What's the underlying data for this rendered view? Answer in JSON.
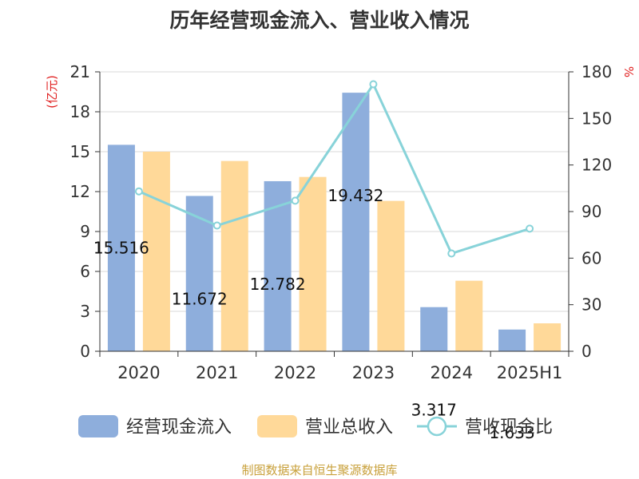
{
  "title": "历年经营现金流入、营业收入情况",
  "source": "制图数据来自恒生聚源数据库",
  "chart_data": {
    "type": "bar",
    "title": "历年经营现金流入、营业收入情况",
    "categories": [
      "2020",
      "2021",
      "2022",
      "2023",
      "2024",
      "2025H1"
    ],
    "left_axis": {
      "unit_label": "(亿元)",
      "ylim": [
        0,
        21
      ],
      "ticks": [
        "0",
        "3",
        "6",
        "9",
        "12",
        "15",
        "18",
        "21"
      ]
    },
    "right_axis": {
      "unit_label": "%",
      "ylim": [
        0,
        180
      ],
      "ticks": [
        "0",
        "30",
        "60",
        "90",
        "120",
        "150",
        "180"
      ]
    },
    "grid": true,
    "legend_position": "bottom",
    "series": [
      {
        "name": "经营现金流入",
        "kind": "bar",
        "axis": "left",
        "color": "#8eaedc",
        "values": [
          15.516,
          11.672,
          12.782,
          19.432,
          3.317,
          1.633
        ],
        "labels": [
          "15.516",
          "11.672",
          "12.782",
          "19.432",
          "3.317",
          "1.633"
        ]
      },
      {
        "name": "营业总收入",
        "kind": "bar",
        "axis": "left",
        "color": "#ffd999",
        "values": [
          15.0,
          14.3,
          13.1,
          11.3,
          5.3,
          2.1
        ]
      },
      {
        "name": "营收现金比",
        "kind": "line",
        "axis": "right",
        "color": "#88d3d9",
        "values": [
          103,
          81,
          97,
          172,
          63,
          79
        ]
      }
    ]
  }
}
